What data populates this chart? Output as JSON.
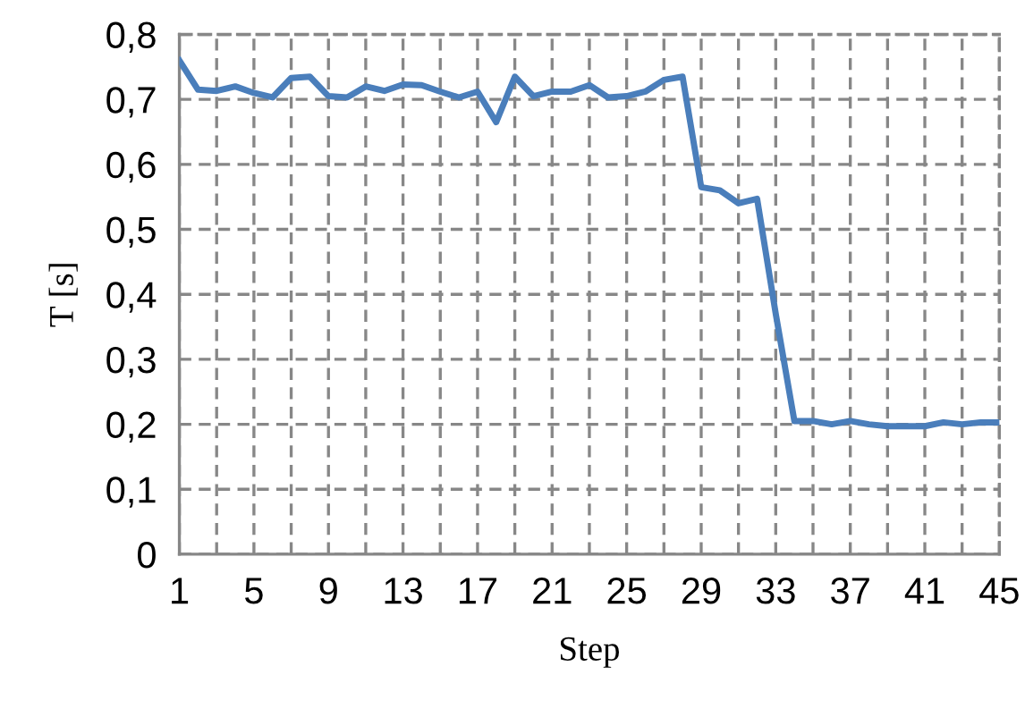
{
  "chart_data": {
    "type": "line",
    "xlabel": "Step",
    "ylabel": "T [s]",
    "x": [
      1,
      2,
      3,
      4,
      5,
      6,
      7,
      8,
      9,
      10,
      11,
      12,
      13,
      14,
      15,
      16,
      17,
      18,
      19,
      20,
      21,
      22,
      23,
      24,
      25,
      26,
      27,
      28,
      29,
      30,
      31,
      32,
      33,
      34,
      35,
      36,
      37,
      38,
      39,
      40,
      41,
      42,
      43,
      44,
      45
    ],
    "series": [
      {
        "color": "#4a7ebb",
        "values": [
          0.76,
          0.715,
          0.713,
          0.72,
          0.71,
          0.703,
          0.733,
          0.735,
          0.705,
          0.703,
          0.72,
          0.713,
          0.723,
          0.722,
          0.712,
          0.703,
          0.712,
          0.665,
          0.735,
          0.705,
          0.712,
          0.712,
          0.722,
          0.703,
          0.705,
          0.712,
          0.73,
          0.735,
          0.565,
          0.56,
          0.54,
          0.547,
          0.37,
          0.205,
          0.205,
          0.2,
          0.205,
          0.2,
          0.197,
          0.197,
          0.197,
          0.203,
          0.2,
          0.203,
          0.203
        ]
      }
    ],
    "xlim": [
      1,
      45
    ],
    "xticks": [
      1,
      {
        "value": 3,
        "label": null
      },
      5,
      {
        "value": 7,
        "label": null
      },
      9,
      {
        "value": 11,
        "label": null
      },
      13,
      {
        "value": 15,
        "label": null
      },
      17,
      {
        "value": 19,
        "label": null
      },
      21,
      {
        "value": 23,
        "label": null
      },
      25,
      {
        "value": 27,
        "label": null
      },
      29,
      {
        "value": 31,
        "label": null
      },
      33,
      {
        "value": 35,
        "label": null
      },
      37,
      {
        "value": 39,
        "label": null
      },
      41,
      {
        "value": 43,
        "label": null
      },
      45
    ],
    "ylim": [
      0,
      0.8
    ],
    "yticks": [
      {
        "value": 0,
        "label": "0"
      },
      {
        "value": 0.1,
        "label": "0,1"
      },
      {
        "value": 0.2,
        "label": "0,2"
      },
      {
        "value": 0.3,
        "label": "0,3"
      },
      {
        "value": 0.4,
        "label": "0,4"
      },
      {
        "value": 0.5,
        "label": "0,5"
      },
      {
        "value": 0.6,
        "label": "0,6"
      },
      {
        "value": 0.7,
        "label": "0,7"
      },
      {
        "value": 0.8,
        "label": "0,8"
      }
    ],
    "grid": true,
    "marker": "none",
    "line_style": "solid"
  }
}
